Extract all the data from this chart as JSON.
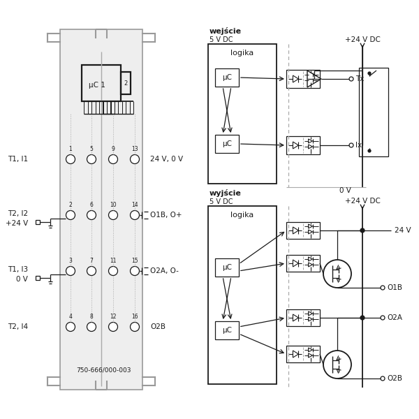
{
  "bg_color": "#ffffff",
  "lc": "#1a1a1a",
  "gray": "#aaaaaa",
  "fig_w": 6.0,
  "fig_h": 6.0,
  "labels": {
    "T1_I1": "T1, I1",
    "T2_I2": "T2, I2",
    "plus24V": "+24 V",
    "T1_I3": "T1, I3",
    "0V": "0 V",
    "T2_I4": "T2, I4",
    "24V0V": "24 V, 0 V",
    "O1B_Op": "O1B, O+",
    "O2A_Om": "O2A, O-",
    "O2B": "O2B",
    "wejscie": "wejście",
    "5VDC": "5 V DC",
    "plus24VDC": "+24 V DC",
    "wyjscie": "wyjście",
    "logika": "logika",
    "uC": "μC",
    "uC1": "μC 1",
    "Tx": "Tx",
    "Ix": "Ix",
    "0Vlab": "0 V",
    "24V": "24 V",
    "O1B": "O1B",
    "O2A": "O2A",
    "O2Bb": "O2B",
    "partnum": "750-666/000-003"
  }
}
